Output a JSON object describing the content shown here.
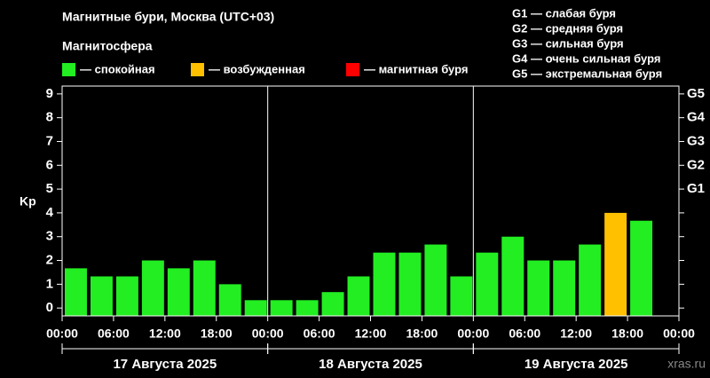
{
  "chart_data": {
    "type": "bar",
    "title": "Магнитные бури, Москва (UTC+03)",
    "subtitle": "Магнитосфера",
    "y_label": "Kp",
    "watermark": "xras.ru",
    "legend": [
      {
        "name": "— спокойная",
        "color": "#22ee22"
      },
      {
        "name": "— возбужденная",
        "color": "#ffc000"
      },
      {
        "name": "— магнитная буря",
        "color": "#ff0000"
      }
    ],
    "storm_scale": [
      "G1 — слабая буря",
      "G2 — средняя буря",
      "G3 — сильная буря",
      "G4 — очень сильная буря",
      "G5 — экстремальная буря"
    ],
    "x": [
      0,
      3,
      6,
      9,
      12,
      15,
      18,
      21,
      24,
      27,
      30,
      33,
      36,
      39,
      42,
      45,
      48,
      51,
      54,
      57,
      60,
      63,
      66,
      69
    ],
    "bin_width": 3,
    "values": [
      1.67,
      1.33,
      1.33,
      2.0,
      1.67,
      2.0,
      1.0,
      0.33,
      0.33,
      0.33,
      0.67,
      1.33,
      2.33,
      2.33,
      2.67,
      1.33,
      2.33,
      3.0,
      2.0,
      2.0,
      2.67,
      4.0,
      3.67,
      null
    ],
    "colors": [
      "#22ee22",
      "#22ee22",
      "#22ee22",
      "#22ee22",
      "#22ee22",
      "#22ee22",
      "#22ee22",
      "#22ee22",
      "#22ee22",
      "#22ee22",
      "#22ee22",
      "#22ee22",
      "#22ee22",
      "#22ee22",
      "#22ee22",
      "#22ee22",
      "#22ee22",
      "#22ee22",
      "#22ee22",
      "#22ee22",
      "#22ee22",
      "#ffc000",
      "#22ee22",
      null
    ],
    "xlim": [
      0,
      72
    ],
    "xticks": [
      {
        "value": 0,
        "label": "00:00"
      },
      {
        "value": 6,
        "label": "06:00"
      },
      {
        "value": 12,
        "label": "12:00"
      },
      {
        "value": 18,
        "label": "18:00"
      },
      {
        "value": 24,
        "label": "00:00"
      },
      {
        "value": 30,
        "label": "06:00"
      },
      {
        "value": 36,
        "label": "12:00"
      },
      {
        "value": 42,
        "label": "18:00"
      },
      {
        "value": 48,
        "label": "00:00"
      },
      {
        "value": 54,
        "label": "06:00"
      },
      {
        "value": 60,
        "label": "12:00"
      },
      {
        "value": 66,
        "label": "18:00"
      },
      {
        "value": 72,
        "label": "00:00"
      }
    ],
    "days": [
      {
        "start": 0,
        "end": 24,
        "label": "17 Августа 2025"
      },
      {
        "start": 24,
        "end": 48,
        "label": "18 Августа 2025"
      },
      {
        "start": 48,
        "end": 72,
        "label": "19 Августа 2025"
      }
    ],
    "ylim": [
      -0.33,
      9.33
    ],
    "yticks": [
      0,
      1,
      2,
      3,
      4,
      5,
      6,
      7,
      8,
      9
    ],
    "y2lim": [
      -0.33,
      9.33
    ],
    "y2ticks": [
      {
        "value": 5,
        "label": "G1"
      },
      {
        "value": 6,
        "label": "G2"
      },
      {
        "value": 7,
        "label": "G3"
      },
      {
        "value": 8,
        "label": "G4"
      },
      {
        "value": 9,
        "label": "G5"
      }
    ]
  }
}
